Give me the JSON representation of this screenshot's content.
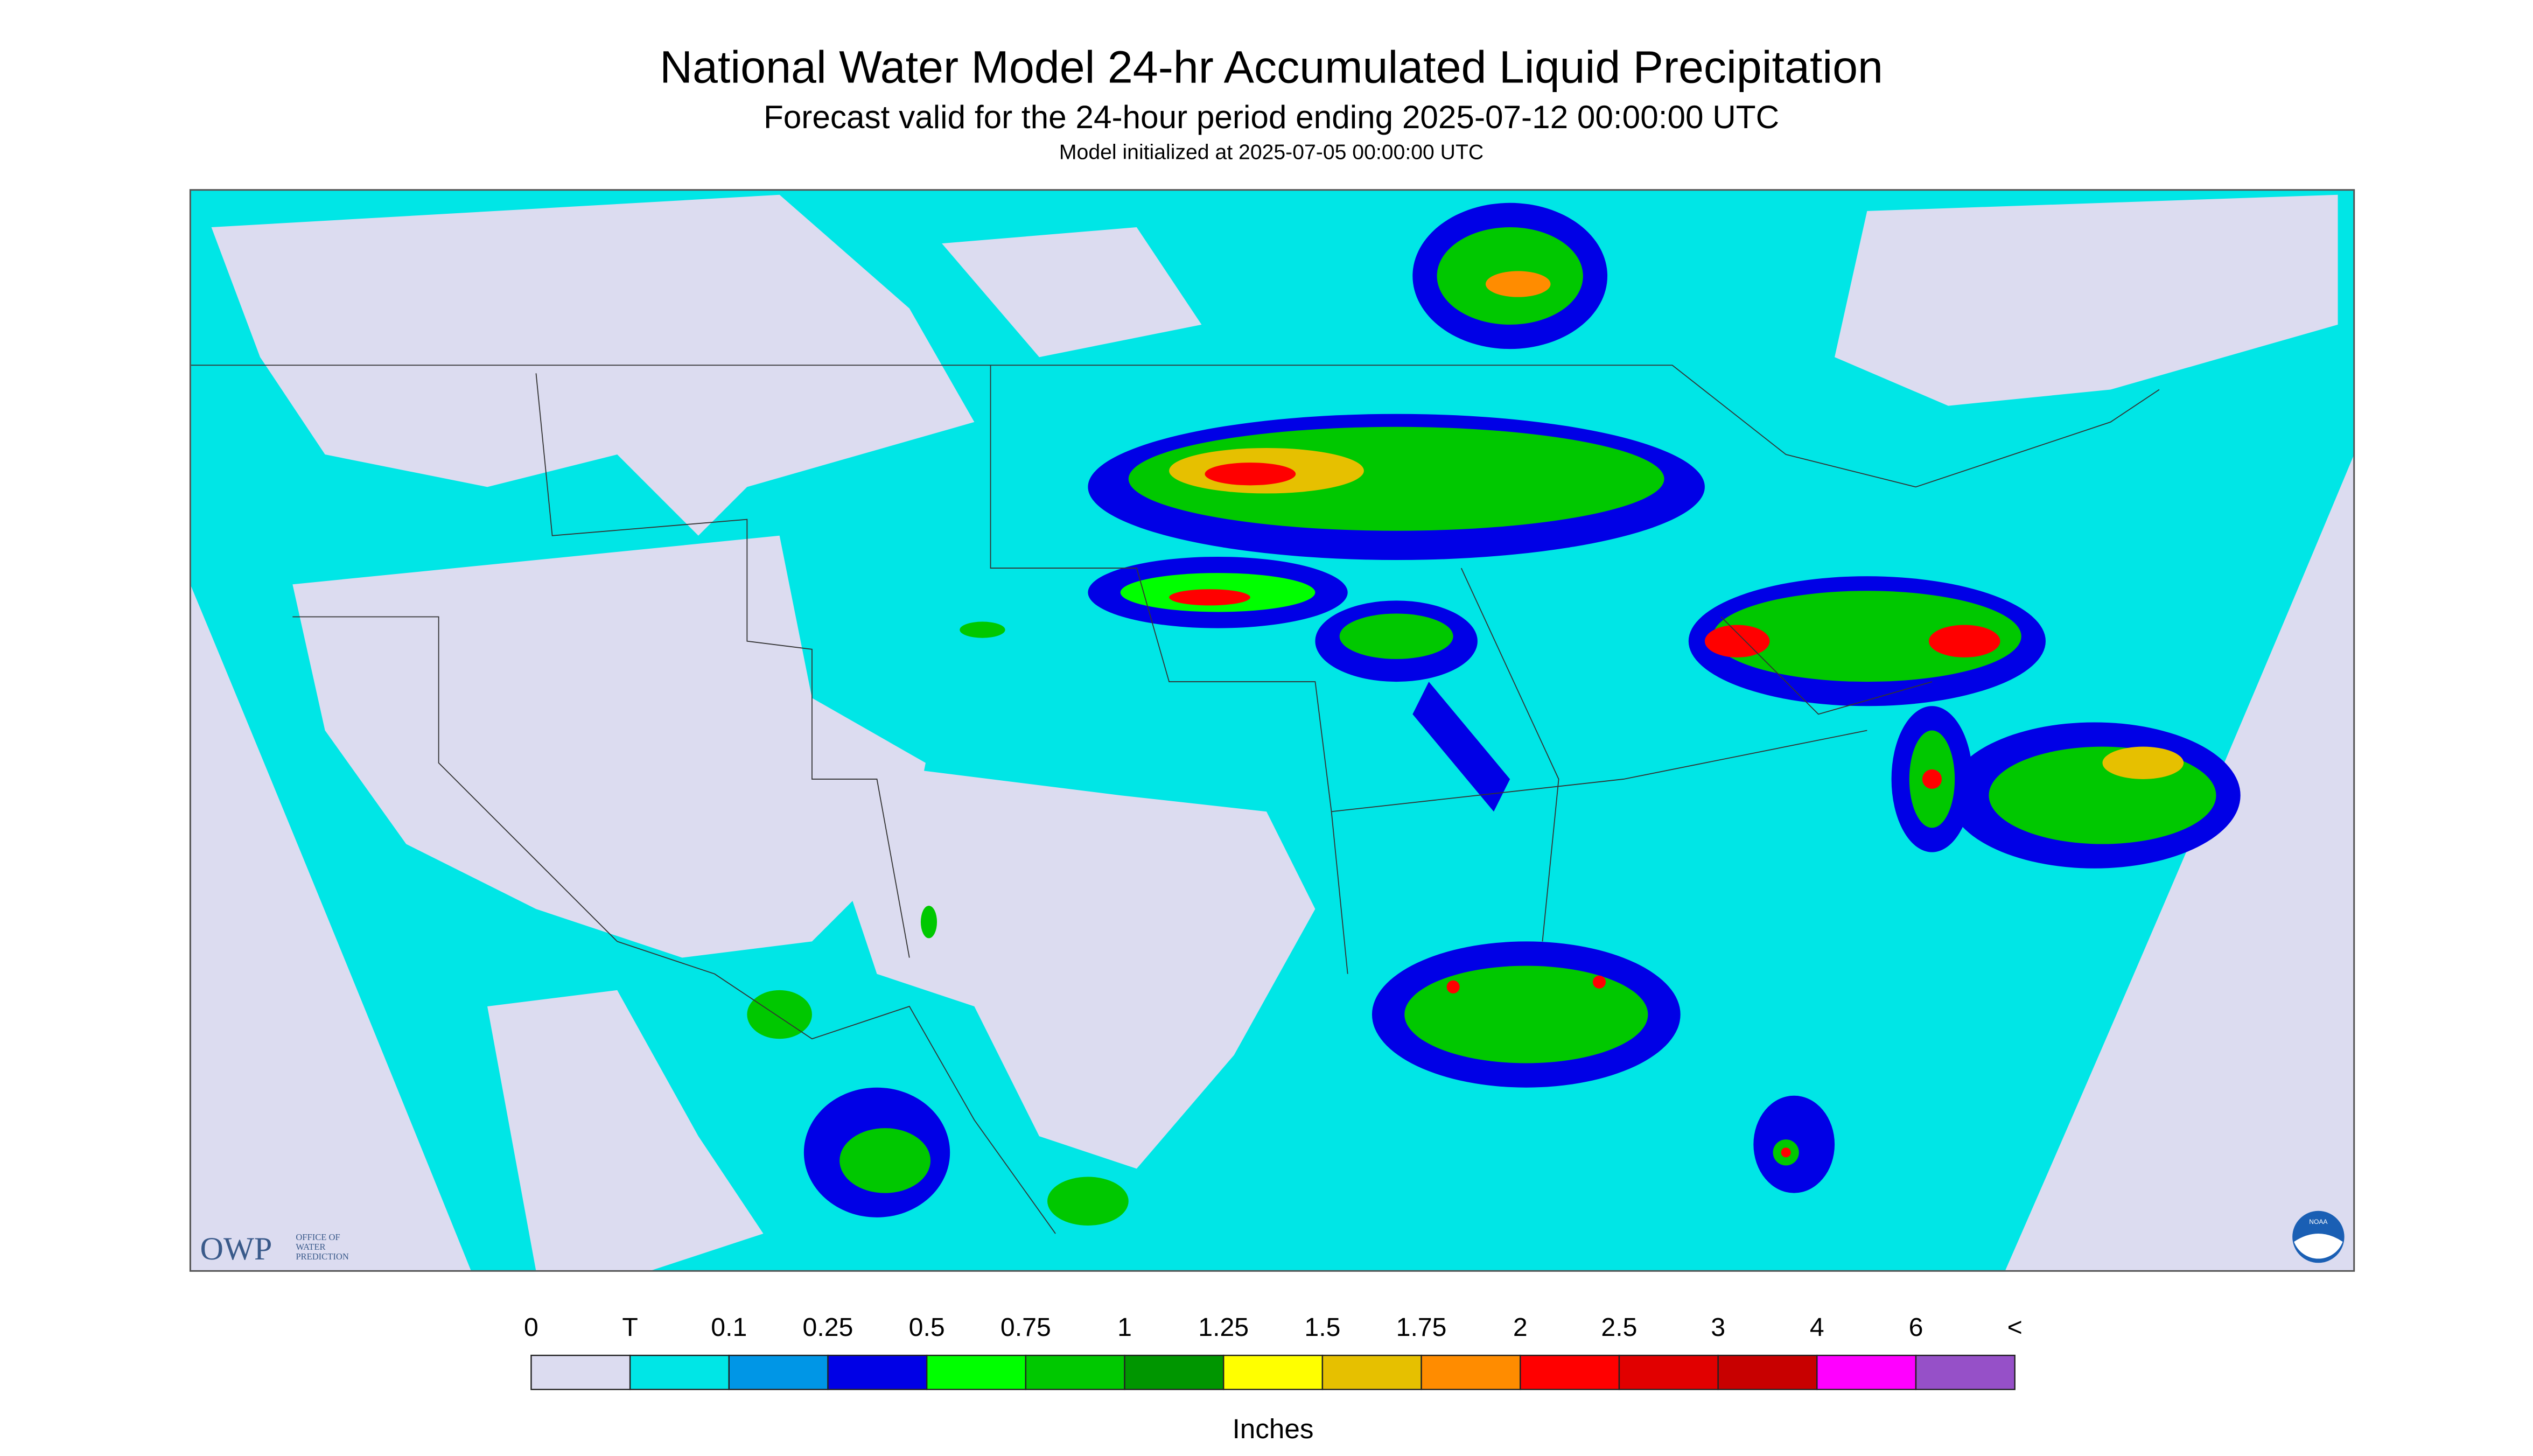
{
  "header": {
    "title": "National Water Model 24-hr Accumulated Liquid Precipitation",
    "subtitle": "Forecast valid for the 24-hour period ending 2025-07-12 00:00:00 UTC",
    "initialized": "Model initialized at 2025-07-05 00:00:00 UTC"
  },
  "legend": {
    "labels": [
      "0",
      "T",
      "0.1",
      "0.25",
      "0.5",
      "0.75",
      "1",
      "1.25",
      "1.5",
      "1.75",
      "2",
      "2.5",
      "3",
      "4",
      "6",
      "<"
    ],
    "colors": [
      "#dcdcf0",
      "#00e6e6",
      "#0096e6",
      "#0000e6",
      "#00ff00",
      "#00c800",
      "#009600",
      "#ffff00",
      "#e6c000",
      "#ff8c00",
      "#ff0000",
      "#e10000",
      "#c80000",
      "#ff00ff",
      "#9650c8"
    ],
    "unit": "Inches"
  },
  "logos": {
    "owp": "OWP",
    "owp_lines": [
      "OFFICE OF",
      "WATER",
      "PREDICTION"
    ],
    "noaa": "NOAA"
  }
}
